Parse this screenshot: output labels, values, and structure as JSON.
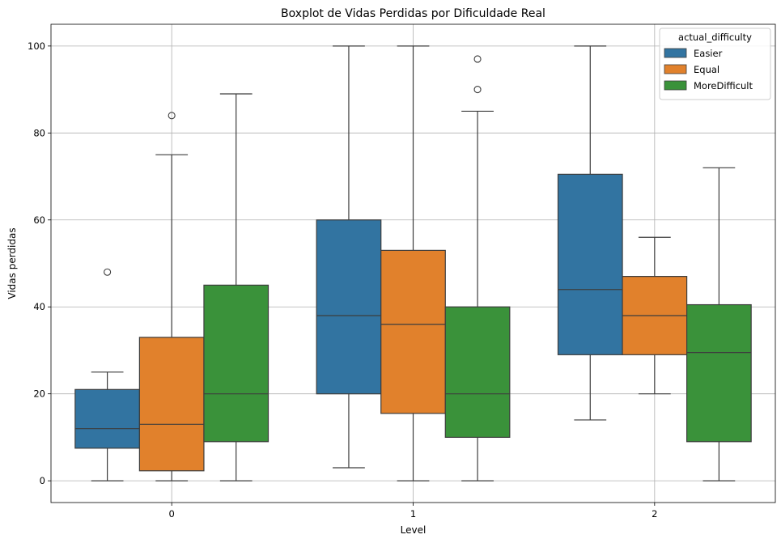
{
  "chart_data": {
    "type": "box",
    "title": "Boxplot de Vidas Perdidas por Dificuldade Real",
    "xlabel": "Level",
    "ylabel": "Vidas perdidas",
    "categories": [
      "0",
      "1",
      "2"
    ],
    "ylim": [
      -5,
      105
    ],
    "yticks": [
      0,
      20,
      40,
      60,
      80,
      100
    ],
    "grid": true,
    "legend": {
      "title": "actual_difficulty",
      "position": "top-right"
    },
    "series": [
      {
        "name": "Easier",
        "color": "#3274a1",
        "boxes": [
          {
            "whislo": 0,
            "q1": 7.5,
            "med": 12,
            "q3": 21,
            "whishi": 25,
            "fliers": [
              48
            ]
          },
          {
            "whislo": 3,
            "q1": 20,
            "med": 38,
            "q3": 60,
            "whishi": 100,
            "fliers": []
          },
          {
            "whislo": 14,
            "q1": 29,
            "med": 44,
            "q3": 70.5,
            "whishi": 100,
            "fliers": []
          }
        ]
      },
      {
        "name": "Equal",
        "color": "#e1812c",
        "boxes": [
          {
            "whislo": 0,
            "q1": 2.3,
            "med": 13,
            "q3": 33,
            "whishi": 75,
            "fliers": [
              84
            ]
          },
          {
            "whislo": 0,
            "q1": 15.5,
            "med": 36,
            "q3": 53,
            "whishi": 100,
            "fliers": []
          },
          {
            "whislo": 20,
            "q1": 29,
            "med": 38,
            "q3": 47,
            "whishi": 56,
            "fliers": []
          }
        ]
      },
      {
        "name": "MoreDifficult",
        "color": "#3a923a",
        "boxes": [
          {
            "whislo": 0,
            "q1": 9,
            "med": 20,
            "q3": 45,
            "whishi": 89,
            "fliers": []
          },
          {
            "whislo": 0,
            "q1": 10,
            "med": 20,
            "q3": 40,
            "whishi": 85,
            "fliers": [
              90,
              97
            ]
          },
          {
            "whislo": 0,
            "q1": 9,
            "med": 29.5,
            "q3": 40.5,
            "whishi": 72,
            "fliers": []
          }
        ]
      }
    ]
  }
}
